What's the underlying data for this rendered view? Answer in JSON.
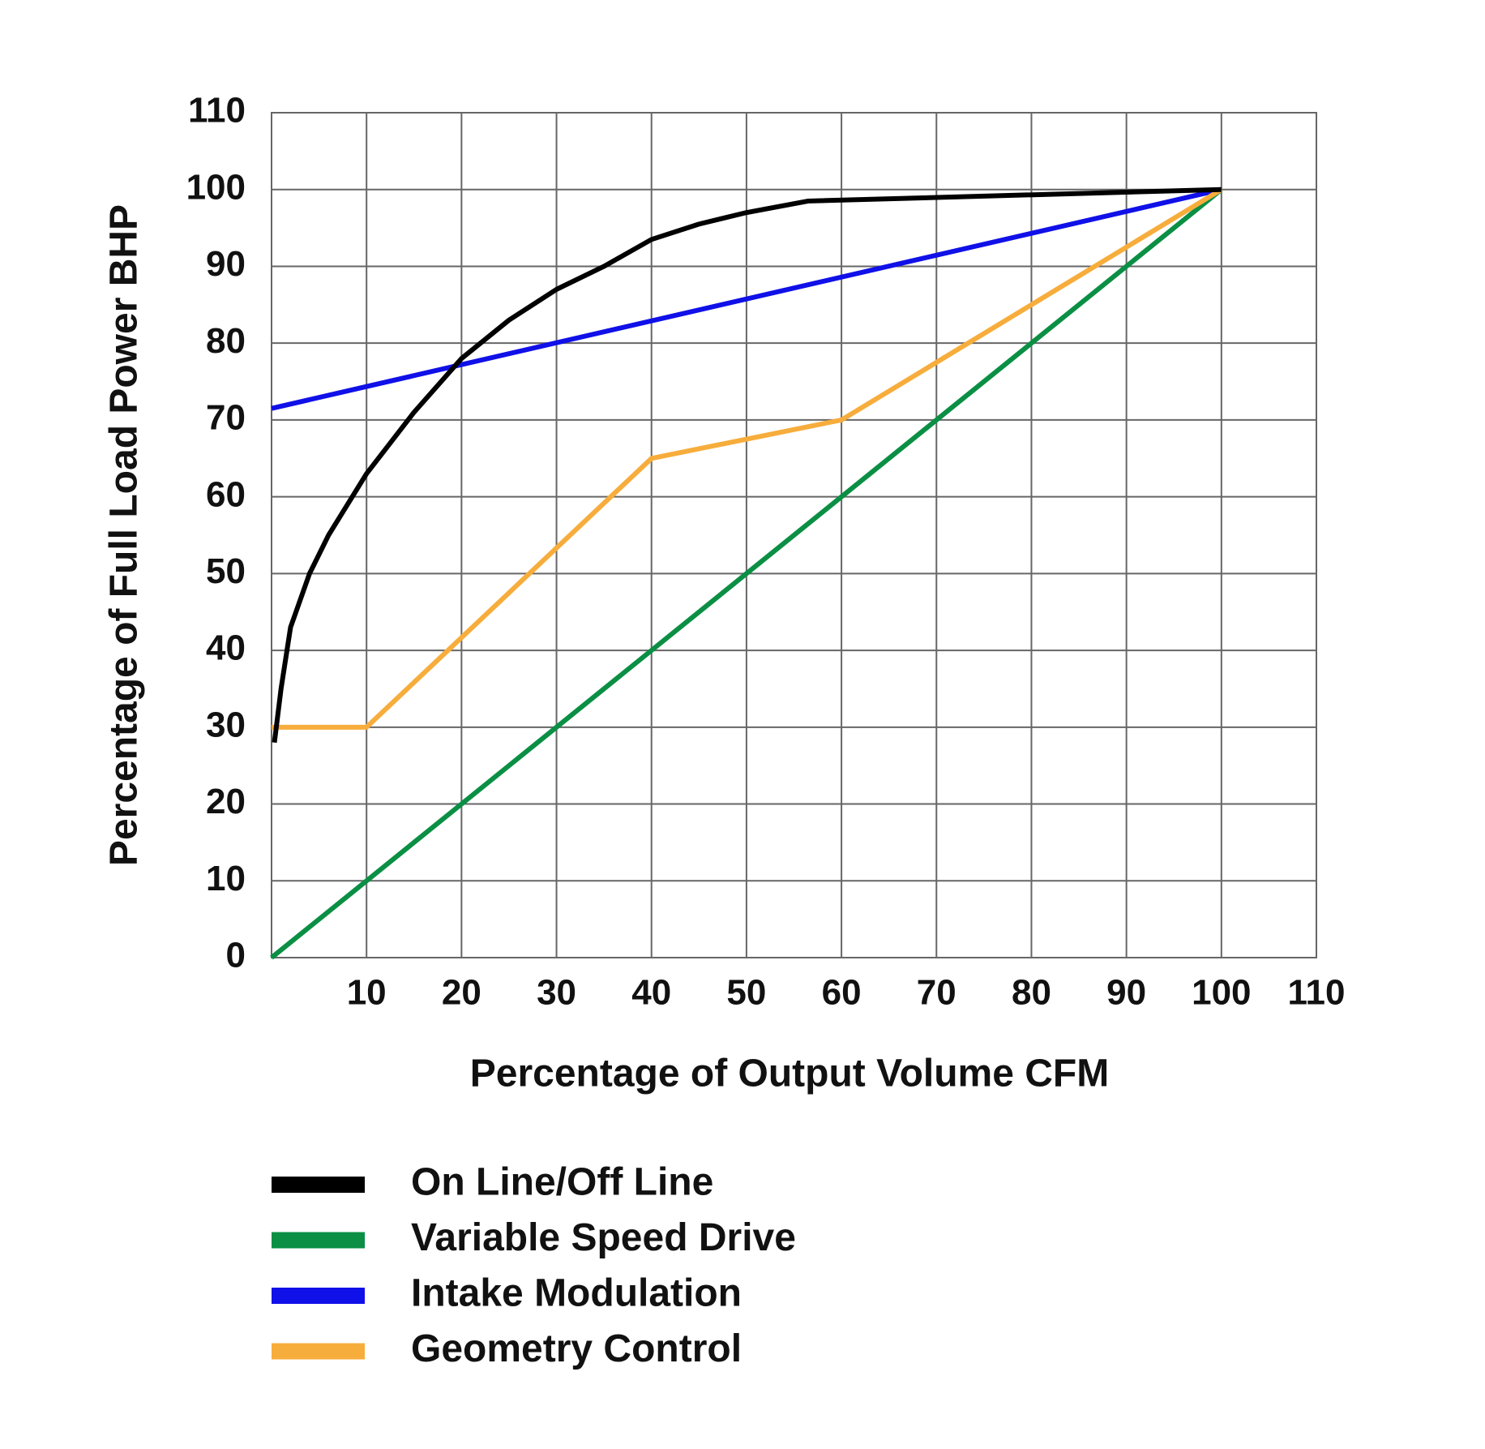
{
  "chart_data": {
    "type": "line",
    "xlabel": "Percentage of Output Volume CFM",
    "ylabel": "Percentage of Full Load Power BHP",
    "xlim": [
      0,
      110
    ],
    "ylim": [
      0,
      110
    ],
    "xticks": [
      10,
      20,
      30,
      40,
      50,
      60,
      70,
      80,
      90,
      100,
      110
    ],
    "yticks": [
      0,
      10,
      20,
      30,
      40,
      50,
      60,
      70,
      80,
      90,
      100,
      110
    ],
    "grid": true,
    "series": [
      {
        "name": "On Line/Off Line",
        "color": "#000000",
        "x": [
          0.3,
          1,
          2,
          4,
          6,
          10,
          15,
          20,
          25,
          30,
          35,
          40,
          45,
          50,
          56.5,
          100
        ],
        "values": [
          28,
          35,
          43,
          50,
          55,
          63,
          71,
          78,
          83,
          87,
          90,
          93.5,
          95.5,
          97,
          98.5,
          100
        ]
      },
      {
        "name": "Variable Speed Drive",
        "color": "#0a8f44",
        "x": [
          0,
          100
        ],
        "values": [
          0,
          100
        ]
      },
      {
        "name": "Intake Modulation",
        "color": "#1010e8",
        "x": [
          0,
          100
        ],
        "values": [
          71.5,
          100
        ]
      },
      {
        "name": "Geometry Control",
        "color": "#f7ad3c",
        "x": [
          0,
          10,
          40,
          60,
          100
        ],
        "values": [
          30,
          30,
          65,
          70,
          100
        ]
      }
    ]
  }
}
